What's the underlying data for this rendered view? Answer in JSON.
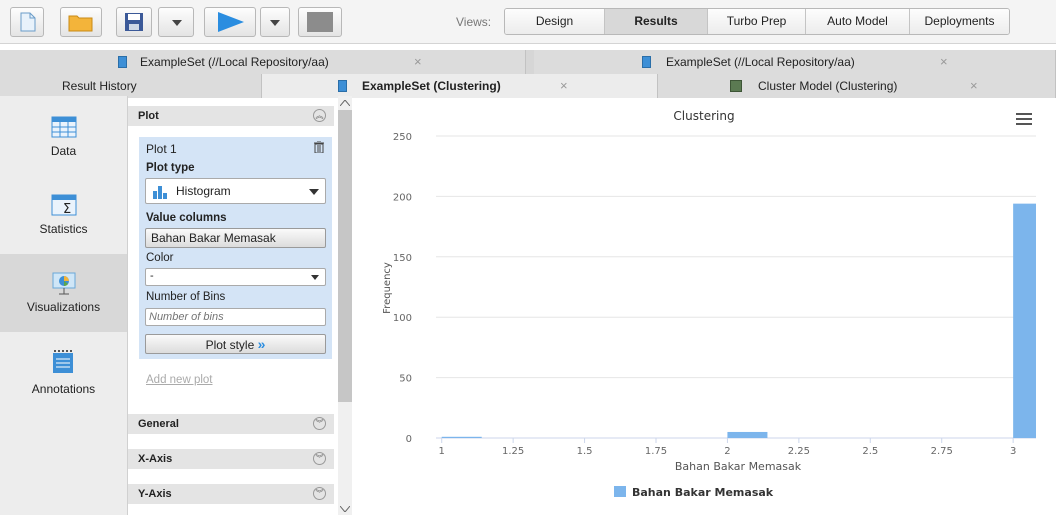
{
  "toolbar": {
    "views_label": "Views:",
    "views": [
      {
        "label": "Design",
        "active": false
      },
      {
        "label": "Results",
        "active": true
      },
      {
        "label": "Turbo Prep",
        "active": false
      },
      {
        "label": "Auto Model",
        "active": false
      },
      {
        "label": "Deployments",
        "active": false
      }
    ]
  },
  "tabs_row1": [
    {
      "label": "ExampleSet (//Local Repository/aa)"
    },
    {
      "label": "ExampleSet (//Local Repository/aa)"
    }
  ],
  "tabs_row2": [
    {
      "label": "Result History"
    },
    {
      "label": "ExampleSet (Clustering)"
    },
    {
      "label": "Cluster Model (Clustering)"
    }
  ],
  "leftnav": [
    {
      "label": "Data",
      "icon": "table-icon"
    },
    {
      "label": "Statistics",
      "icon": "statistics-icon"
    },
    {
      "label": "Visualizations",
      "icon": "visualization-icon"
    },
    {
      "label": "Annotations",
      "icon": "annotations-icon"
    }
  ],
  "panel": {
    "plot_section": "Plot",
    "plot_name": "Plot 1",
    "plot_type_label": "Plot type",
    "plot_type_value": "Histogram",
    "value_columns_label": "Value columns",
    "value_columns_value": "Bahan Bakar Memasak",
    "color_label": "Color",
    "color_value": "-",
    "bins_label": "Number of Bins",
    "bins_placeholder": "Number of bins",
    "plot_style_button": "Plot style",
    "add_new_plot": "Add new plot",
    "general_section": "General",
    "xaxis_section": "X-Axis",
    "yaxis_section": "Y-Axis"
  },
  "chart_data": {
    "type": "bar",
    "title": "Clustering",
    "xlabel": "Bahan Bakar Memasak",
    "ylabel": "Frequency",
    "xlim": [
      0.98,
      3.08
    ],
    "ylim": [
      0,
      250
    ],
    "x_ticks": [
      "1",
      "1.25",
      "1.5",
      "1.75",
      "2",
      "2.25",
      "2.5",
      "2.75",
      "3"
    ],
    "y_ticks": [
      "0",
      "50",
      "100",
      "150",
      "200",
      "250"
    ],
    "bar_color": "#7cb5ec",
    "series": [
      {
        "name": "Bahan Bakar Memasak",
        "bins": [
          {
            "x0": 1.0,
            "x1": 1.14,
            "value": 1
          },
          {
            "x0": 2.0,
            "x1": 2.14,
            "value": 5
          },
          {
            "x0": 3.0,
            "x1": 3.14,
            "value": 194
          }
        ]
      }
    ],
    "grid": true,
    "legend_position": "bottom-center"
  }
}
